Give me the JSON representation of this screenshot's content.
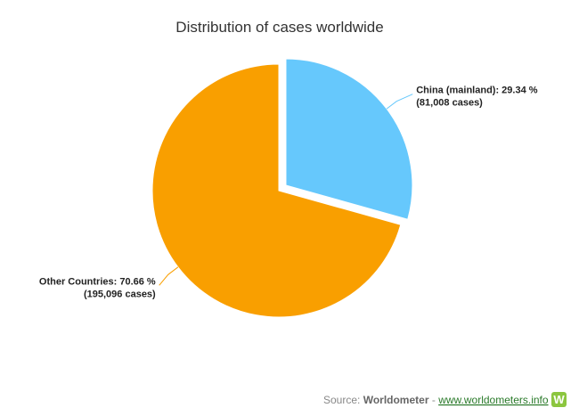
{
  "chart_data": {
    "type": "pie",
    "title": "Distribution of cases worldwide",
    "values": [
      29.34,
      70.66
    ],
    "value_labels": [
      "China (mainland): 29.34 %",
      "Other Countries: 70.66 %"
    ],
    "cases": [
      81008,
      195096
    ],
    "case_labels": [
      "(81,008 cases)",
      "(195,096 cases)"
    ],
    "colors": [
      "#66c8fc",
      "#f99f00"
    ],
    "sliced": [
      true,
      false
    ]
  },
  "source": {
    "prefix": "Source:",
    "name": "Worldometer",
    "separator": "-",
    "link": "www.worldometers.info",
    "logo": "W"
  }
}
